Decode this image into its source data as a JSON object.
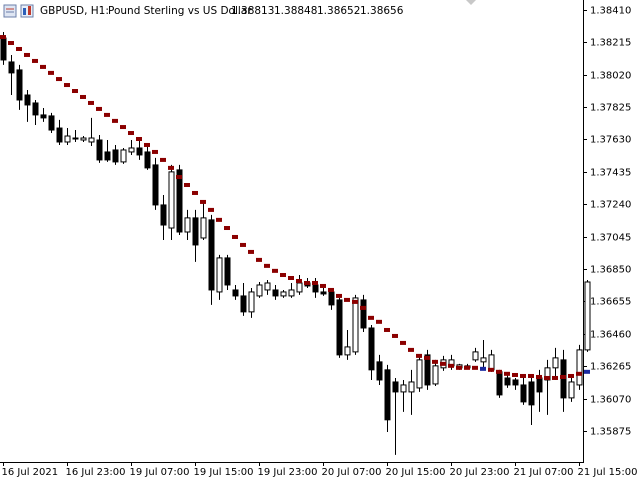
{
  "chart_data": {
    "type": "candlestick",
    "symbol": "GBPUSD, H1:",
    "description": "Pound Sterling vs US Dollar",
    "header_values": [
      1.38813,
      1.38848,
      1.38652,
      1.38656
    ],
    "categories": [
      "16 Jul 2021",
      null,
      null,
      null,
      null,
      null,
      null,
      null,
      "16 Jul 23:00",
      null,
      null,
      null,
      null,
      null,
      null,
      null,
      "19 Jul 07:00",
      null,
      null,
      null,
      null,
      null,
      null,
      null,
      "19 Jul 15:00",
      null,
      null,
      null,
      null,
      null,
      null,
      null,
      "19 Jul 23:00",
      null,
      null,
      null,
      null,
      null,
      null,
      null,
      "20 Jul 07:00",
      null,
      null,
      null,
      null,
      null,
      null,
      null,
      "20 Jul 15:00",
      null,
      null,
      null,
      null,
      null,
      null,
      null,
      "20 Jul 23:00",
      null,
      null,
      null,
      null,
      null,
      null,
      null,
      "21 Jul 07:00",
      null,
      null,
      null,
      null,
      null,
      null,
      null,
      "21 Jul 15:00",
      null
    ],
    "open": [
      1.38241,
      1.38097,
      1.38049,
      1.37898,
      1.3785,
      1.37778,
      1.37772,
      1.37699,
      1.37615,
      1.37639,
      1.37627,
      1.37615,
      1.37627,
      1.37555,
      1.37567,
      1.37495,
      1.37555,
      1.37579,
      1.37555,
      1.37477,
      1.37236,
      1.37097,
      1.37447,
      1.37073,
      1.37158,
      1.37037,
      1.37146,
      1.36712,
      1.36917,
      1.36724,
      1.36688,
      1.36592,
      1.36688,
      1.36724,
      1.36724,
      1.36688,
      1.36688,
      1.36712,
      1.36766,
      1.36754,
      1.36712,
      1.36712,
      1.36664,
      1.36333,
      1.36351,
      1.36664,
      1.36495,
      1.36291,
      1.36243,
      1.3617,
      1.3611,
      1.3611,
      1.36134,
      1.36333,
      1.36158,
      1.36255,
      1.36267,
      1.36255,
      1.36267,
      1.36303,
      1.36291,
      1.36243,
      1.36231,
      1.36194,
      1.36182,
      1.36152,
      1.3617,
      1.36194,
      1.36182,
      1.36255,
      1.36303,
      1.36074,
      1.36152,
      1.36363
    ],
    "high": [
      1.38277,
      1.38139,
      1.38079,
      1.37928,
      1.37868,
      1.3782,
      1.3779,
      1.37748,
      1.37699,
      1.37687,
      1.37651,
      1.3776,
      1.37657,
      1.37627,
      1.37597,
      1.37579,
      1.37627,
      1.37627,
      1.37597,
      1.37519,
      1.37296,
      1.37477,
      1.37477,
      1.37206,
      1.37206,
      1.37266,
      1.37176,
      1.36935,
      1.36935,
      1.36754,
      1.36766,
      1.36736,
      1.36772,
      1.36784,
      1.36754,
      1.36724,
      1.36766,
      1.36814,
      1.36796,
      1.36796,
      1.36736,
      1.36724,
      1.36676,
      1.36483,
      1.36694,
      1.36694,
      1.36513,
      1.36333,
      1.36273,
      1.36194,
      1.36182,
      1.36243,
      1.36333,
      1.36363,
      1.36303,
      1.36327,
      1.36333,
      1.36279,
      1.36279,
      1.36375,
      1.36423,
      1.36363,
      1.36243,
      1.36212,
      1.36194,
      1.36212,
      1.36194,
      1.36243,
      1.36303,
      1.36375,
      1.36363,
      1.36194,
      1.36393,
      1.36784
    ],
    "low": [
      1.38079,
      1.37898,
      1.37808,
      1.37736,
      1.37717,
      1.37736,
      1.37669,
      1.37597,
      1.37597,
      1.37615,
      1.37615,
      1.37591,
      1.37489,
      1.37495,
      1.37477,
      1.37483,
      1.37537,
      1.37507,
      1.37447,
      1.37206,
      1.37025,
      1.37025,
      1.37055,
      1.37025,
      1.36893,
      1.37025,
      1.36634,
      1.36664,
      1.36724,
      1.36664,
      1.36568,
      1.36556,
      1.36676,
      1.36694,
      1.36664,
      1.36676,
      1.36676,
      1.36694,
      1.36736,
      1.36676,
      1.36688,
      1.36604,
      1.36315,
      1.36303,
      1.36333,
      1.36471,
      1.36182,
      1.36152,
      1.35869,
      1.35731,
      1.3599,
      1.35972,
      1.3611,
      1.36122,
      1.36146,
      1.36237,
      1.36243,
      1.36243,
      1.36249,
      1.36291,
      1.36243,
      1.36231,
      1.36074,
      1.36134,
      1.36122,
      1.36032,
      1.35911,
      1.3599,
      1.35972,
      1.36182,
      1.3599,
      1.3605,
      1.36122,
      1.36351
    ],
    "close": [
      1.38109,
      1.38031,
      1.37868,
      1.37838,
      1.37778,
      1.3776,
      1.37687,
      1.37615,
      1.37651,
      1.37633,
      1.37639,
      1.37639,
      1.37507,
      1.37507,
      1.37495,
      1.37567,
      1.37579,
      1.37537,
      1.37459,
      1.37236,
      1.37115,
      1.37435,
      1.37073,
      1.37158,
      1.36995,
      1.37158,
      1.36724,
      1.36917,
      1.36754,
      1.36688,
      1.36592,
      1.36712,
      1.36754,
      1.36766,
      1.36688,
      1.36712,
      1.36724,
      1.36766,
      1.36748,
      1.36712,
      1.367,
      1.36634,
      1.36333,
      1.36381,
      1.36676,
      1.36495,
      1.36243,
      1.36182,
      1.35942,
      1.3611,
      1.36152,
      1.3617,
      1.36303,
      1.36152,
      1.36267,
      1.36303,
      1.36303,
      1.36273,
      1.36255,
      1.36351,
      1.36315,
      1.36333,
      1.36092,
      1.36152,
      1.36152,
      1.3605,
      1.36032,
      1.3611,
      1.36255,
      1.36315,
      1.36074,
      1.3617,
      1.36363,
      1.36772
    ],
    "bull_color": "#ffffff",
    "bear_color": "#000000",
    "indicator": {
      "values": [
        1.38247,
        1.38211,
        1.38175,
        1.38139,
        1.38103,
        1.38067,
        1.38031,
        1.37994,
        1.37958,
        1.37922,
        1.37886,
        1.3785,
        1.37814,
        1.37778,
        1.37742,
        1.37705,
        1.37669,
        1.37633,
        1.37597,
        1.37555,
        1.37507,
        1.37459,
        1.37404,
        1.37356,
        1.37308,
        1.37254,
        1.37206,
        1.37146,
        1.37097,
        1.37043,
        1.36995,
        1.36953,
        1.36905,
        1.36869,
        1.36839,
        1.36814,
        1.36796,
        1.36778,
        1.36766,
        1.36766,
        1.36748,
        1.36724,
        1.36688,
        1.36664,
        1.36652,
        1.36616,
        1.36556,
        1.36532,
        1.36483,
        1.36447,
        1.36405,
        1.36363,
        1.36327,
        1.36315,
        1.36291,
        1.36279,
        1.36267,
        1.36255,
        1.36255,
        1.36255,
        1.36249,
        1.36243,
        1.36231,
        1.36219,
        1.36212,
        1.36206,
        1.36206,
        1.362,
        1.36194,
        1.36194,
        1.362,
        1.36206,
        1.36219,
        1.36231
      ],
      "colors": [
        "#8b0000",
        "#8b0000",
        "#8b0000",
        "#8b0000",
        "#8b0000",
        "#8b0000",
        "#8b0000",
        "#8b0000",
        "#8b0000",
        "#8b0000",
        "#8b0000",
        "#8b0000",
        "#8b0000",
        "#8b0000",
        "#8b0000",
        "#8b0000",
        "#8b0000",
        "#8b0000",
        "#8b0000",
        "#8b0000",
        "#8b0000",
        "#8b0000",
        "#8b0000",
        "#8b0000",
        "#8b0000",
        "#8b0000",
        "#8b0000",
        "#8b0000",
        "#8b0000",
        "#8b0000",
        "#8b0000",
        "#8b0000",
        "#8b0000",
        "#8b0000",
        "#8b0000",
        "#8b0000",
        "#8b0000",
        "#8b0000",
        "#8b0000",
        "#8b0000",
        "#8b0000",
        "#8b0000",
        "#8b0000",
        "#8b0000",
        "#8b0000",
        "#8b0000",
        "#8b0000",
        "#8b0000",
        "#8b0000",
        "#8b0000",
        "#8b0000",
        "#8b0000",
        "#8b0000",
        "#8b0000",
        "#8b0000",
        "#8b0000",
        "#8b0000",
        "#8b0000",
        "#8b0000",
        "#8b0000",
        "#1a2aa0",
        "#8b0000",
        "#8b0000",
        "#8b0000",
        "#8b0000",
        "#8b0000",
        "#8b0000",
        "#8b0000",
        "#8b0000",
        "#8b0000",
        "#8b0000",
        "#8b0000",
        "#8b0000",
        "#1a2aa0"
      ]
    },
    "ylim": [
      1.35688,
      1.3847
    ],
    "yticks": [
      {
        "value": 1.3841,
        "label": "1.38410"
      },
      1.38215,
      {
        "value": 1.3802,
        "label": "1.38020"
      },
      1.37825,
      {
        "value": 1.3763,
        "label": "1.37630"
      },
      1.37435,
      {
        "value": 1.3724,
        "label": "1.37240"
      },
      1.37045,
      {
        "value": 1.3685,
        "label": "1.36850"
      },
      1.36655,
      {
        "value": 1.3646,
        "label": "1.36460"
      },
      1.36265,
      {
        "value": 1.3607,
        "label": "1.36070"
      },
      1.35875
    ]
  }
}
